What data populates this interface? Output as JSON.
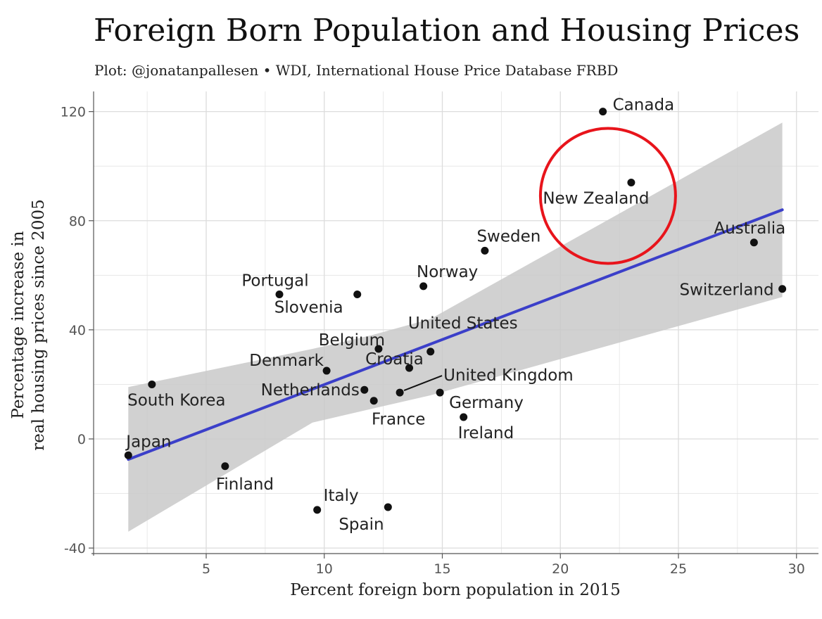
{
  "chart_data": {
    "type": "scatter",
    "title": "Foreign Born Population and Housing Prices",
    "subtitle": "Plot: @jonatanpallesen • WDI, International House Price Database FRBD",
    "xlabel": "Percent foreign born population in 2015",
    "ylabel": [
      "Percentage increase in",
      "real housing prices since 2005"
    ],
    "xlim": [
      0.1,
      30.9
    ],
    "ylim": [
      -42,
      124
    ],
    "x_ticks": [
      5,
      10,
      15,
      20,
      25,
      30
    ],
    "y_ticks": [
      -40,
      0,
      40,
      80,
      120
    ],
    "grid": true,
    "points": [
      {
        "label": "Canada",
        "x": 21.8,
        "y": 120
      },
      {
        "label": "New Zealand",
        "x": 23.0,
        "y": 94
      },
      {
        "label": "Sweden",
        "x": 16.8,
        "y": 69
      },
      {
        "label": "Australia",
        "x": 28.2,
        "y": 72
      },
      {
        "label": "Norway",
        "x": 14.2,
        "y": 56
      },
      {
        "label": "Switzerland",
        "x": 29.4,
        "y": 55
      },
      {
        "label": "Portugal",
        "x": 8.1,
        "y": 53
      },
      {
        "label": "Slovenia",
        "x": 11.4,
        "y": 53
      },
      {
        "label": "Belgium",
        "x": 12.3,
        "y": 33
      },
      {
        "label": "United States",
        "x": 14.5,
        "y": 32
      },
      {
        "label": "Croatia",
        "x": 13.6,
        "y": 26
      },
      {
        "label": "Denmark",
        "x": 10.1,
        "y": 25
      },
      {
        "label": "Netherlands",
        "x": 11.7,
        "y": 18
      },
      {
        "label": "United Kingdom",
        "x": 13.2,
        "y": 17
      },
      {
        "label": "Germany",
        "x": 14.9,
        "y": 17
      },
      {
        "label": "France",
        "x": 12.1,
        "y": 14
      },
      {
        "label": "South Korea",
        "x": 2.7,
        "y": 20
      },
      {
        "label": "Ireland",
        "x": 15.9,
        "y": 8
      },
      {
        "label": "Japan",
        "x": 1.7,
        "y": -6
      },
      {
        "label": "Finland",
        "x": 5.8,
        "y": -10
      },
      {
        "label": "Italy",
        "x": 9.7,
        "y": -26
      },
      {
        "label": "Spain",
        "x": 12.7,
        "y": -25
      }
    ],
    "trend_line": {
      "x": [
        1.7,
        29.4
      ],
      "y": [
        -7.5,
        84
      ]
    },
    "confidence_band": {
      "x": [
        1.7,
        9.5,
        12.0,
        14.5,
        29.4
      ],
      "upper": [
        19,
        33,
        38,
        44,
        116
      ],
      "lower": [
        -34,
        6,
        11,
        16,
        52
      ]
    },
    "highlight": {
      "label": "New Zealand",
      "color": "#e8141b"
    },
    "colors": {
      "trend": "#3b3fc9",
      "band": "#c9c9c9",
      "point": "#111111",
      "grid": "#e4e4e4"
    }
  }
}
